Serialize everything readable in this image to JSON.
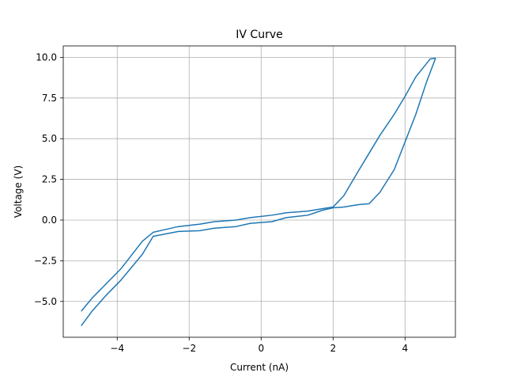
{
  "chart_data": {
    "type": "line",
    "title": "IV Curve",
    "xlabel": "Current (nA)",
    "ylabel": "Voltage (V)",
    "xlim": [
      -5.5,
      5.4
    ],
    "ylim": [
      -7.2,
      10.7
    ],
    "xticks": [
      -4,
      -2,
      0,
      2,
      4
    ],
    "xtick_labels": [
      "−4",
      "−2",
      "0",
      "2",
      "4"
    ],
    "yticks": [
      -5.0,
      -2.5,
      0.0,
      2.5,
      5.0,
      7.5,
      10.0
    ],
    "ytick_labels": [
      "−5.0",
      "−2.5",
      "0.0",
      "2.5",
      "5.0",
      "7.5",
      "10.0"
    ],
    "grid": true,
    "series_color": "#1f77b4",
    "series": [
      {
        "points": [
          [
            -5.0,
            -5.6
          ],
          [
            -4.7,
            -4.8
          ],
          [
            -4.3,
            -3.9
          ],
          [
            -3.9,
            -3.0
          ],
          [
            -3.3,
            -1.3
          ],
          [
            -3.0,
            -0.75
          ],
          [
            -2.7,
            -0.6
          ],
          [
            -2.3,
            -0.4
          ],
          [
            -1.7,
            -0.25
          ],
          [
            -1.3,
            -0.1
          ],
          [
            -0.7,
            0.0
          ],
          [
            -0.3,
            0.15
          ],
          [
            0.3,
            0.3
          ],
          [
            0.7,
            0.45
          ],
          [
            1.3,
            0.55
          ],
          [
            1.7,
            0.7
          ],
          [
            2.0,
            0.8
          ],
          [
            2.3,
            1.5
          ],
          [
            2.7,
            3.0
          ],
          [
            3.0,
            4.1
          ],
          [
            3.3,
            5.2
          ],
          [
            3.7,
            6.5
          ],
          [
            4.0,
            7.6
          ],
          [
            4.3,
            8.8
          ],
          [
            4.7,
            9.9
          ],
          [
            4.85,
            9.95
          ]
        ]
      },
      {
        "points": [
          [
            4.85,
            9.95
          ],
          [
            4.6,
            8.5
          ],
          [
            4.3,
            6.5
          ],
          [
            4.0,
            4.8
          ],
          [
            3.7,
            3.1
          ],
          [
            3.3,
            1.7
          ],
          [
            3.0,
            1.0
          ],
          [
            2.7,
            0.95
          ],
          [
            2.3,
            0.8
          ],
          [
            2.0,
            0.75
          ],
          [
            1.7,
            0.6
          ],
          [
            1.3,
            0.3
          ],
          [
            0.7,
            0.15
          ],
          [
            0.3,
            -0.1
          ],
          [
            -0.3,
            -0.2
          ],
          [
            -0.7,
            -0.4
          ],
          [
            -1.3,
            -0.5
          ],
          [
            -1.7,
            -0.65
          ],
          [
            -2.3,
            -0.7
          ],
          [
            -3.0,
            -1.0
          ],
          [
            -3.3,
            -2.1
          ],
          [
            -3.9,
            -3.7
          ],
          [
            -4.3,
            -4.6
          ],
          [
            -4.7,
            -5.6
          ],
          [
            -5.0,
            -6.5
          ]
        ]
      }
    ]
  }
}
